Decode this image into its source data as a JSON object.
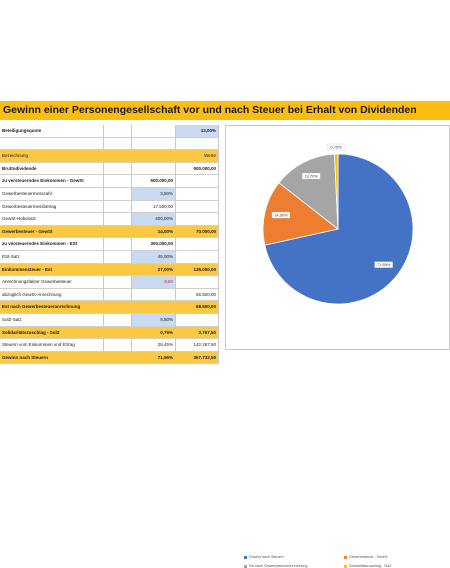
{
  "title": "Gewinn einer Personengesellschaft vor und nach Steuer bei Erhalt von Dividenden",
  "rows": [
    {
      "label": "Beteiligungsquote",
      "c1": "",
      "c2": "",
      "c3": "13,00%",
      "style": "plain",
      "c3blue": true,
      "bold": true
    },
    {
      "label": "",
      "c1": "",
      "c2": "",
      "c3": "",
      "style": "blank"
    },
    {
      "label": "Bezeichnung",
      "c1": "",
      "c2": "",
      "c3": "Werte",
      "style": "yellow",
      "bold": false
    },
    {
      "label": "Bruttodividende",
      "c1": "",
      "c2": "",
      "c3": "500.000,00",
      "style": "plain",
      "bold": true
    },
    {
      "label": "zu versteuerndes Einkommen - GewSt",
      "c1": "",
      "c2": "500.000,00",
      "c3": "",
      "style": "plain",
      "bold": true
    },
    {
      "label": "Gewerbesteuermesszahl",
      "c1": "",
      "c2": "3,50%",
      "c3": "",
      "style": "plain",
      "c2blue": true
    },
    {
      "label": "Gewerbesteuermessbetrag",
      "c1": "",
      "c2": "17.500,00",
      "c3": "",
      "style": "plain"
    },
    {
      "label": "GewSt-Hebesatz",
      "c1": "",
      "c2": "400,00%",
      "c3": "",
      "style": "plain",
      "c2blue": true
    },
    {
      "label": "Gewerbesteuer - GewSt",
      "c1": "",
      "c2": "14,00%",
      "c3": "70.000,00",
      "style": "yellow",
      "bold": true
    },
    {
      "label": "zu versteuerndes Einkommen - ESt",
      "c1": "",
      "c2": "300.000,00",
      "c3": "",
      "style": "plain",
      "bold": true
    },
    {
      "label": "ESt-Satz",
      "c1": "",
      "c2": "45,00%",
      "c3": "",
      "style": "plain",
      "c2blue": true
    },
    {
      "label": "Einkommensteuer - Est",
      "c1": "",
      "c2": "27,00%",
      "c3": "135.000,00",
      "style": "yellow",
      "bold": true
    },
    {
      "label": "Anrechnungsfaktor Gewerbesteuer",
      "c1": "",
      "c2": "-3,80",
      "c3": "",
      "style": "plain",
      "c2blue": true,
      "c2red": true
    },
    {
      "label": "abzüglich GewSt-Anrechnung",
      "c1": "",
      "c2": "",
      "c3": "66.500,00",
      "style": "plain"
    },
    {
      "label": "Est nach Gewerbesteueranrechnung",
      "c1": "",
      "c2": "",
      "c3": "68.500,00",
      "style": "yellow",
      "bold": true
    },
    {
      "label": "SolZ-Satz",
      "c1": "",
      "c2": "5,50%",
      "c3": "",
      "style": "plain",
      "c2blue": true
    },
    {
      "label": "Solidaritätszuschlag - SolZ",
      "c1": "",
      "c2": "0,75%",
      "c3": "3.767,50",
      "style": "yellow",
      "bold": true
    },
    {
      "label": "Steuern vom Einkommen und Ertrag",
      "c1": "",
      "c2": "28,45%",
      "c3": "142.267,50",
      "style": "plain"
    },
    {
      "label": "Gewinn nach Steuern",
      "c1": "",
      "c2": "71,55%",
      "c3": "357.732,50",
      "style": "yellow",
      "bold": true
    }
  ],
  "chart_data": {
    "type": "pie",
    "title": "",
    "slices": [
      {
        "name": "Gewinn nach Steuern",
        "value": 71.55,
        "label": "71,55%",
        "color": "#4472c4"
      },
      {
        "name": "Gewerbesteuer - GewSt",
        "value": 14.0,
        "label": "14,00%",
        "color": "#ed7d31"
      },
      {
        "name": "Est nach Gewerbesteueranrechnung",
        "value": 13.7,
        "label": "13,70%",
        "color": "#a5a5a5"
      },
      {
        "name": "Solidaritätszuschlag - SolZ",
        "value": 0.75,
        "label": "0,75%",
        "color": "#ffc000"
      }
    ],
    "legend_position": "bottom"
  }
}
